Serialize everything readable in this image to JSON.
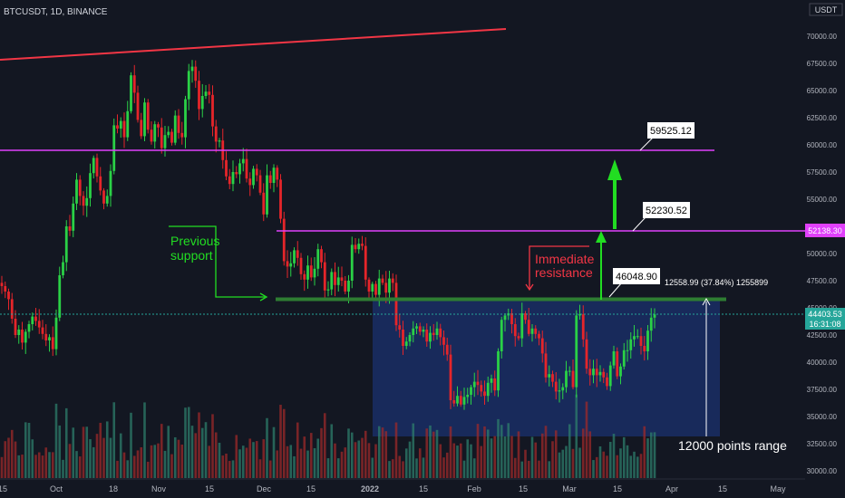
{
  "header": {
    "symbol": "BTCUSDT, 1D, BINANCE",
    "currency": "USDT"
  },
  "price_scale": {
    "ticks": [
      "70000.00",
      "67500.00",
      "65000.00",
      "62500.00",
      "60000.00",
      "57500.00",
      "55000.00",
      "52500.00",
      "50000.00",
      "47500.00",
      "45000.00",
      "42500.00",
      "40000.00",
      "37500.00",
      "35000.00",
      "32500.00",
      "30000.00"
    ],
    "tick_values": [
      70000,
      67500,
      65000,
      62500,
      60000,
      57500,
      55000,
      52500,
      50000,
      47500,
      45000,
      42500,
      40000,
      37500,
      35000,
      32500,
      30000
    ],
    "badge_52138": "52138.30",
    "current_price": "44403.53",
    "countdown": "16:31:08"
  },
  "time_axis": {
    "labels": [
      "15",
      "Oct",
      "18",
      "Nov",
      "15",
      "Dec",
      "15",
      "2022",
      "15",
      "Feb",
      "15",
      "Mar",
      "15",
      "Apr",
      "15",
      "May"
    ],
    "bold": "2022"
  },
  "annotations": {
    "previous_support": [
      "Previous",
      "support"
    ],
    "immediate_resistance": [
      "Immediate",
      "resistance"
    ],
    "label_59525": "59525.12",
    "label_52230": "52230.52",
    "label_46048": "46048.90",
    "measure": "12558.99 (37.84%) 1255899",
    "range": "12000 points range"
  },
  "colors": {
    "background": "#131722",
    "up": "#26a69a",
    "up_candle": "#2ad146",
    "down_candle": "#e5252a",
    "trendline": "#f23645",
    "magenta": "#e040fb",
    "support_green": "#2e7d32",
    "annotation_green": "#22dd22",
    "range_box": "#1e3a8a",
    "volume_up": "#2e7d6b",
    "volume_down": "#9c2a2a"
  },
  "chart_data": {
    "type": "candlestick",
    "symbol": "BTCUSDT",
    "interval": "1D",
    "exchange": "BINANCE",
    "ylim": [
      29600,
      72000
    ],
    "levels": [
      {
        "price": 59525.12,
        "color": "magenta"
      },
      {
        "price": 52230.52,
        "color": "magenta"
      },
      {
        "price": 46048.9,
        "color": "green"
      }
    ],
    "approx_closes": [
      47000,
      46500,
      45800,
      44000,
      42500,
      43000,
      41800,
      42800,
      43500,
      44200,
      43800,
      43200,
      42600,
      42000,
      42300,
      41200,
      44100,
      48000,
      49200,
      52500,
      52100,
      54600,
      56800,
      55300,
      54400,
      55100,
      57400,
      58800,
      57100,
      55800,
      54600,
      55300,
      57600,
      61800,
      61500,
      62200,
      60700,
      63100,
      66400,
      64800,
      62300,
      60800,
      63900,
      61400,
      60300,
      61900,
      61600,
      59700,
      60900,
      61200,
      60200,
      62700,
      61100,
      60700,
      64200,
      66800,
      67200,
      65900,
      63300,
      64500,
      64900,
      64600,
      61700,
      60300,
      60400,
      58600,
      57100,
      56400,
      57500,
      57300,
      58300,
      58700,
      56900,
      56300,
      57800,
      57200,
      55600,
      53600,
      57200,
      56500,
      57900,
      56800,
      53200,
      49300,
      48800,
      49100,
      50300,
      49600,
      48100,
      47600,
      48900,
      47800,
      48600,
      50400,
      49200,
      46600,
      46700,
      48300,
      47100,
      47800,
      47500,
      46500,
      47500,
      50800,
      50400,
      50900,
      50700,
      47600,
      46500,
      47200,
      46200,
      47700,
      47300,
      46400,
      47700,
      47300,
      43400,
      43000,
      41500,
      41900,
      42500,
      43100,
      43300,
      42800,
      43000,
      41900,
      42700,
      42500,
      43100,
      42300,
      41600,
      40700,
      36500,
      36200,
      36900,
      36100,
      36800,
      37000,
      37700,
      38200,
      37900,
      37300,
      36900,
      38100,
      38500,
      37400,
      41000,
      43900,
      44300,
      44500,
      43500,
      42400,
      42200,
      44500,
      43900,
      42600,
      43100,
      42600,
      42200,
      40800,
      38600,
      38900,
      38200,
      37300,
      37400,
      37700,
      39200,
      39200,
      37700,
      44300,
      44400,
      42100,
      39400,
      38800,
      39400,
      38800,
      39100,
      38600,
      37800,
      39700,
      41000,
      38700,
      39600,
      41100,
      41100,
      42100,
      42400,
      42400,
      41500,
      41000,
      42900,
      44100,
      44400
    ],
    "volume": "per-candle volume histogram along bottom"
  }
}
